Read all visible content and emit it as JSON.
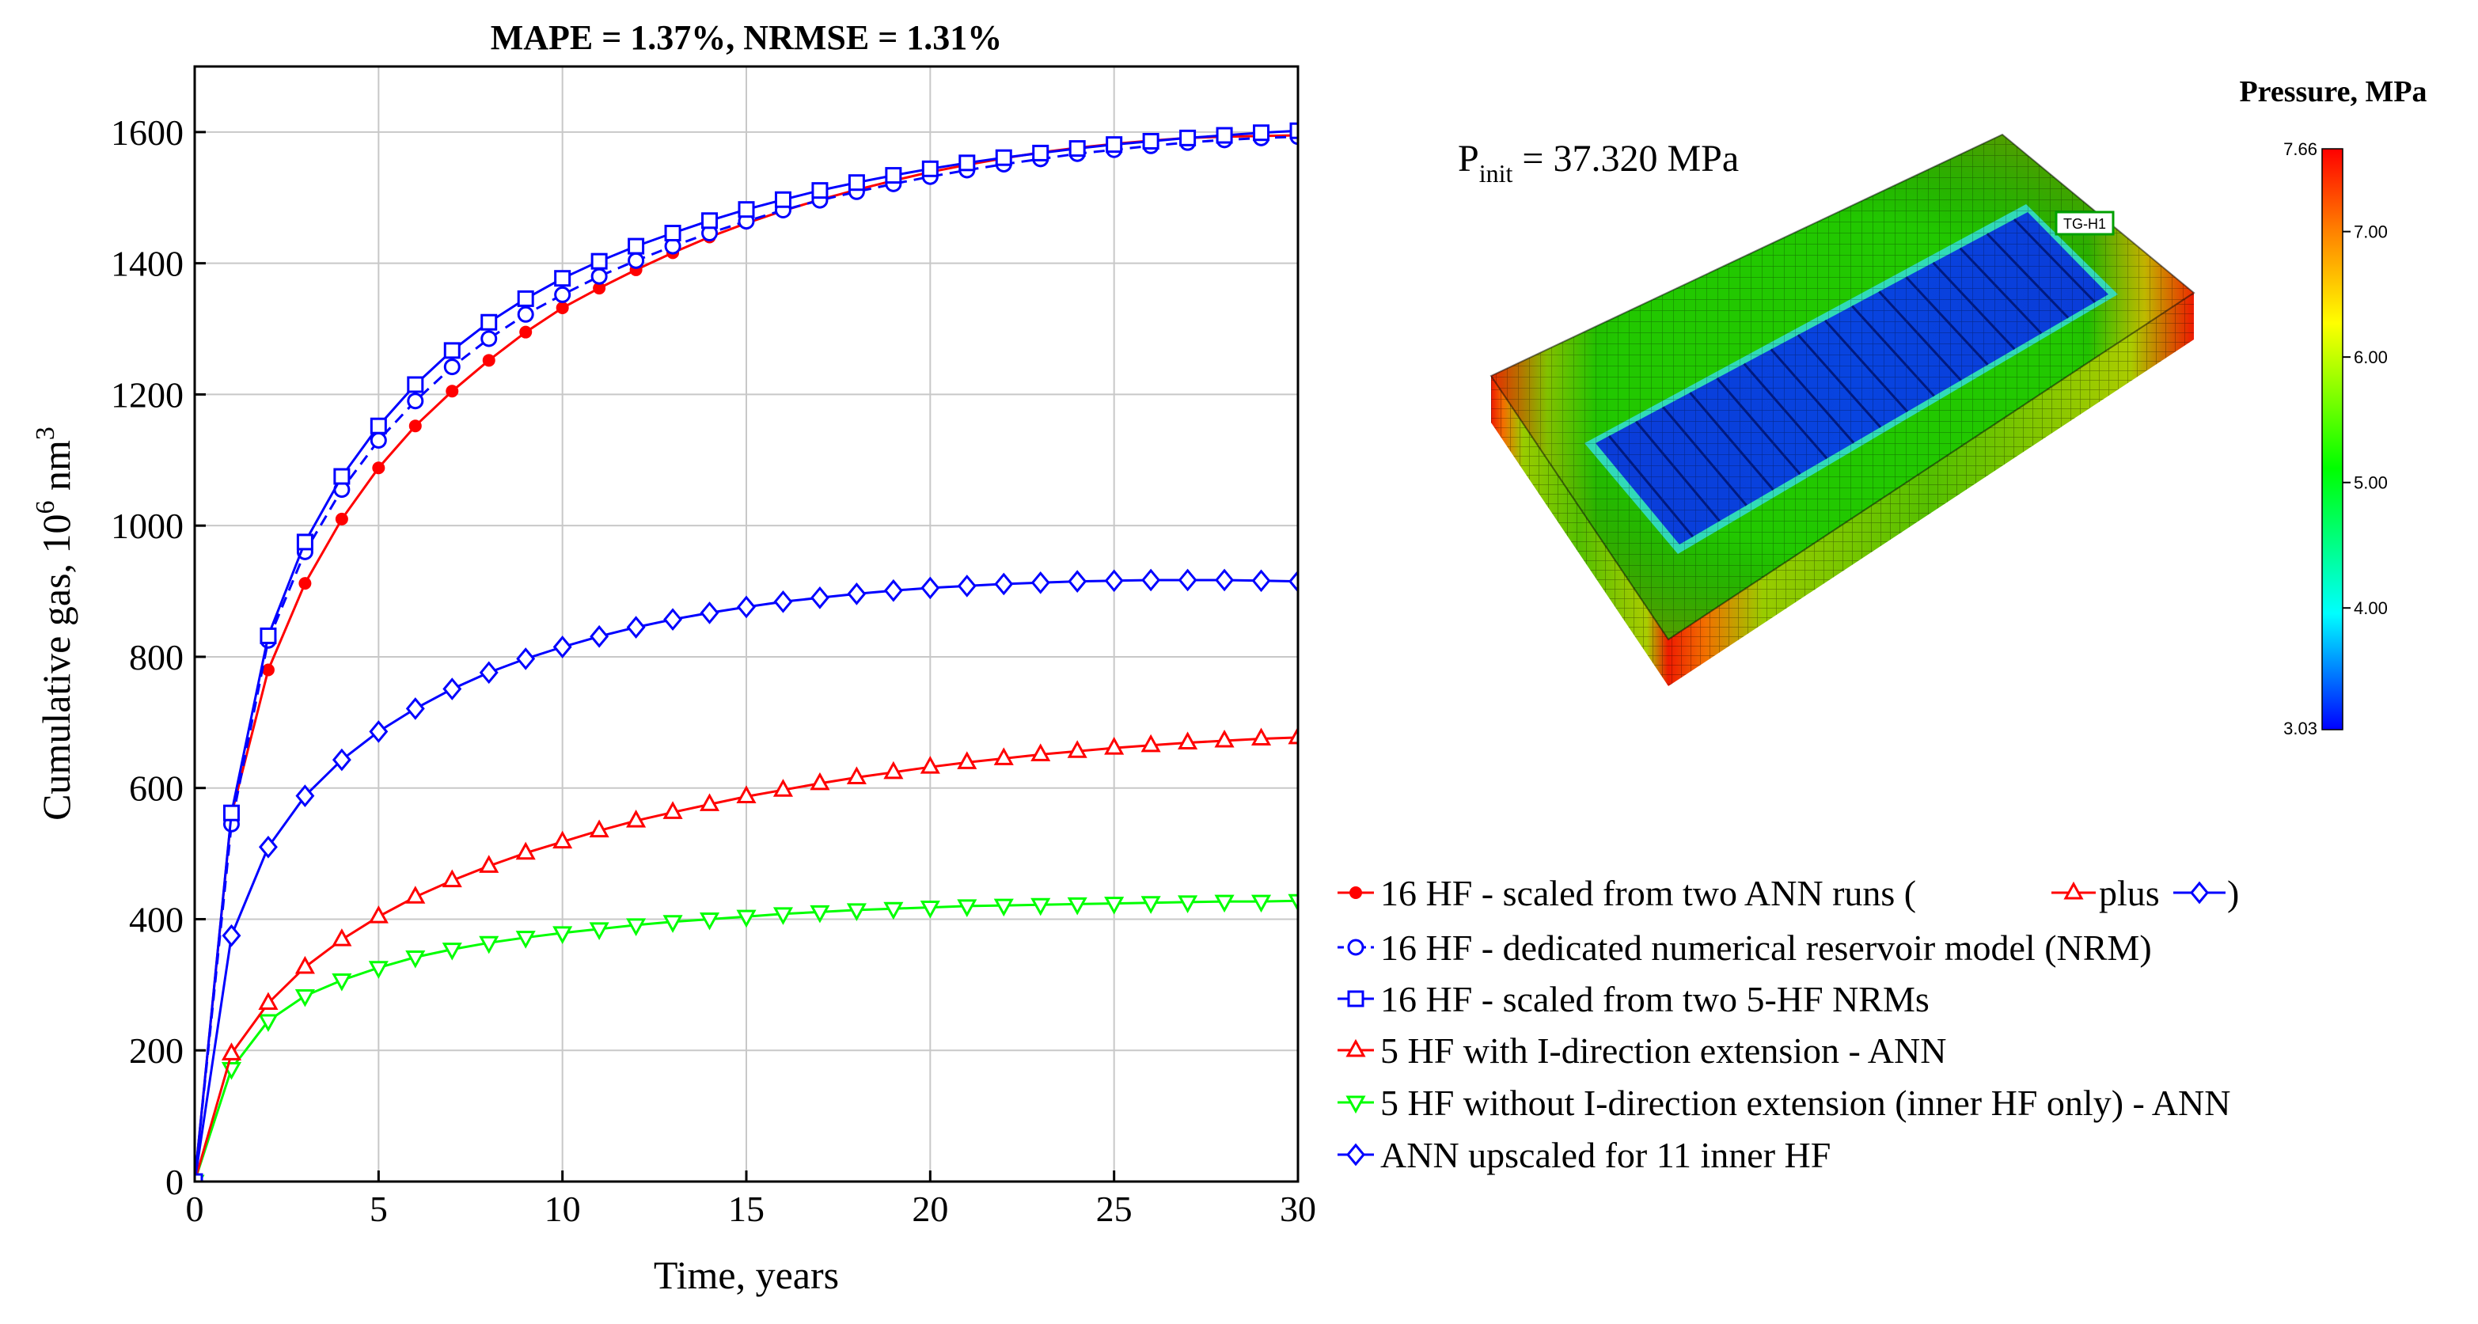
{
  "chart_data": {
    "type": "line",
    "title": "MAPE = 1.37%, NRMSE = 1.31%",
    "xlabel": "Time, years",
    "ylabel_main": "Cumulative gas, 10",
    "ylabel_exp": "6",
    "ylabel_unit": " nm",
    "ylabel_unit_exp": "3",
    "xlim": [
      0,
      30
    ],
    "ylim": [
      0,
      1700
    ],
    "grid": true,
    "xticks": [
      0,
      5,
      10,
      15,
      20,
      25,
      30
    ],
    "yticks": [
      0,
      200,
      400,
      600,
      800,
      1000,
      1200,
      1400,
      1600
    ],
    "x": [
      0,
      1,
      2,
      3,
      4,
      5,
      6,
      7,
      8,
      9,
      10,
      11,
      12,
      13,
      14,
      15,
      16,
      17,
      18,
      19,
      20,
      21,
      22,
      23,
      24,
      25,
      26,
      27,
      28,
      29,
      30
    ],
    "legend_position": "bottom-right",
    "series": [
      {
        "name": "16 HF - scaled from two ANN runs (",
        "legend_plus": "plus",
        "legend_close": ")",
        "color": "#ff0000",
        "marker": "dot",
        "dash": "",
        "values": [
          0,
          560,
          780,
          912,
          1010,
          1088,
          1152,
          1205,
          1252,
          1295,
          1332,
          1362,
          1390,
          1416,
          1440,
          1461,
          1480,
          1497,
          1512,
          1526,
          1539,
          1550,
          1560,
          1569,
          1576,
          1582,
          1587,
          1591,
          1593,
          1594,
          1595
        ]
      },
      {
        "name": "16 HF - dedicated numerical reservoir model (NRM)",
        "color": "#0000ff",
        "marker": "circle",
        "dash": "14,9",
        "values": [
          0,
          545,
          825,
          960,
          1055,
          1130,
          1190,
          1242,
          1285,
          1322,
          1352,
          1380,
          1404,
          1426,
          1446,
          1464,
          1481,
          1496,
          1509,
          1521,
          1532,
          1542,
          1551,
          1559,
          1567,
          1573,
          1579,
          1584,
          1588,
          1591,
          1593
        ]
      },
      {
        "name": "16 HF - scaled from two 5-HF NRMs",
        "color": "#0000ff",
        "marker": "square",
        "dash": "",
        "values": [
          0,
          562,
          832,
          975,
          1075,
          1152,
          1215,
          1267,
          1310,
          1346,
          1377,
          1403,
          1426,
          1446,
          1465,
          1482,
          1497,
          1511,
          1523,
          1534,
          1544,
          1553,
          1561,
          1568,
          1575,
          1581,
          1586,
          1591,
          1595,
          1599,
          1602
        ]
      },
      {
        "name": "5 HF with I-direction extension - ANN",
        "color": "#ff0000",
        "marker": "triangle-up",
        "dash": "",
        "values": [
          0,
          195,
          272,
          327,
          369,
          404,
          434,
          459,
          481,
          501,
          518,
          535,
          550,
          563,
          575,
          587,
          597,
          607,
          616,
          624,
          632,
          639,
          645,
          651,
          656,
          661,
          665,
          669,
          672,
          675,
          677
        ]
      },
      {
        "name": "5 HF without I-direction extension (inner HF only) - ANN",
        "color": "#00ff00",
        "marker": "triangle-down",
        "dash": "",
        "values": [
          0,
          172,
          245,
          283,
          307,
          326,
          342,
          354,
          364,
          372,
          379,
          385,
          391,
          396,
          400,
          404,
          408,
          411,
          414,
          416,
          418,
          420,
          421,
          422,
          423,
          424,
          425,
          426,
          427,
          427,
          428
        ]
      },
      {
        "name": "ANN upscaled for 11 inner HF",
        "color": "#0000ff",
        "marker": "diamond",
        "dash": "",
        "values": [
          0,
          375,
          510,
          588,
          643,
          686,
          721,
          751,
          776,
          797,
          815,
          831,
          845,
          857,
          867,
          876,
          884,
          890,
          896,
          901,
          905,
          908,
          911,
          913,
          915,
          916,
          917,
          917,
          917,
          916,
          915
        ]
      }
    ]
  },
  "pressure_panel": {
    "colorbar_title": "Pressure, MPa",
    "colorbar_max_label": "7.66",
    "colorbar_min_label": "3.03",
    "colorbar_ticks": [
      "7.00",
      "6.00",
      "5.00",
      "4.00"
    ],
    "colorbar_tick_values": [
      7.0,
      6.0,
      5.0,
      4.0
    ],
    "colorbar_range": [
      3.03,
      7.66
    ],
    "pinit_label": "P",
    "pinit_sub": "init",
    "pinit_value": " = 37.320 MPa",
    "well_label": "TG-H1"
  }
}
